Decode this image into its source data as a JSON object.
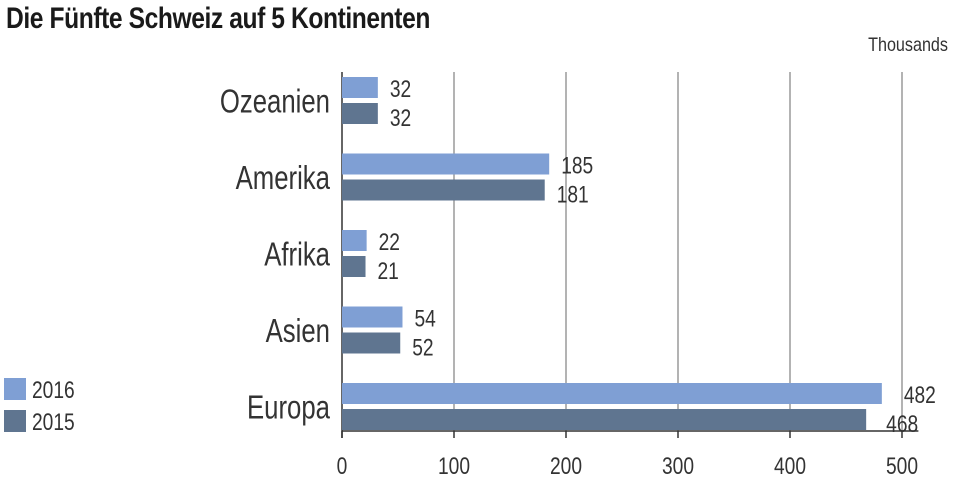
{
  "chart_data": {
    "type": "bar",
    "orientation": "horizontal",
    "title": "Die Fünfte Schweiz auf 5 Kontinenten",
    "unit_label": "Thousands",
    "categories": [
      "Ozeanien",
      "Amerika",
      "Afrika",
      "Asien",
      "Europa"
    ],
    "series": [
      {
        "name": "2016",
        "color": "#7f9fd4",
        "values": [
          32,
          185,
          22,
          54,
          482
        ]
      },
      {
        "name": "2015",
        "color": "#5f7590",
        "values": [
          32,
          181,
          21,
          52,
          468
        ]
      }
    ],
    "xlim": [
      0,
      520
    ],
    "xticks": [
      0,
      100,
      200,
      300,
      400,
      500
    ],
    "grid": true,
    "legend_position": "bottom-left"
  }
}
